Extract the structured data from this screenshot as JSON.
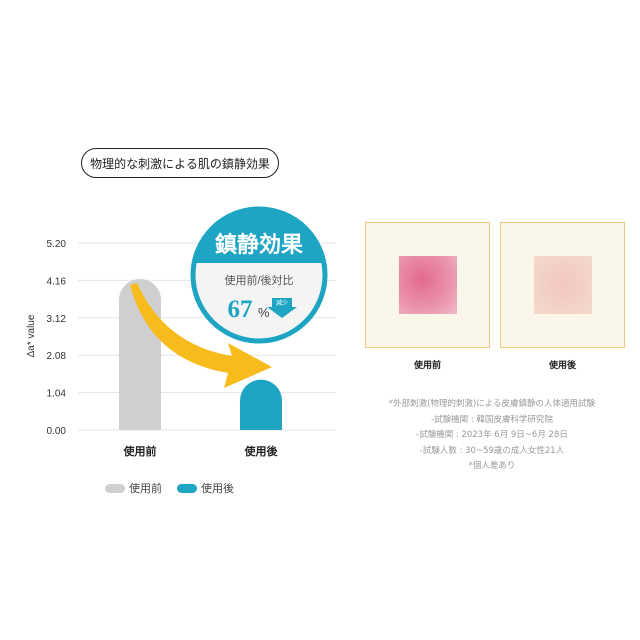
{
  "heading": "物理的な刺激による肌の鎮静効果",
  "badge": {
    "title": "鎮静効果",
    "subtitle": "使用前/後対比",
    "value": "67",
    "unit": "%",
    "tag": "減少"
  },
  "chart_data": {
    "type": "bar",
    "categories": [
      "使用前",
      "使用後"
    ],
    "values": [
      4.2,
      1.4
    ],
    "ylabel": "Δa* value",
    "ylim": [
      0,
      5.2
    ],
    "yticks": [
      "0.00",
      "1.04",
      "2.08",
      "3.12",
      "4.16",
      "5.20"
    ],
    "grid": true,
    "legend": [
      {
        "name": "使用前",
        "color": "#cfcfcf"
      },
      {
        "name": "使用後",
        "color": "#1fa5c4"
      }
    ],
    "legend_position": "bottom",
    "colors": [
      "#cfcfcf",
      "#1fa5c4"
    ],
    "arrow_color": "#f8bb1c"
  },
  "photos": [
    {
      "label": "使用前"
    },
    {
      "label": "使用後"
    }
  ],
  "notes": [
    "*外部刺激(物理的刺激)による皮膚鎮静の人体適用試験",
    "-試験機関 : 韓国皮膚科学研究院",
    "-試験機関 : 2023年 6月 9日~6月 28日",
    "-試験人数 : 30~59歳の成人女性21人",
    "*個人差あり"
  ]
}
